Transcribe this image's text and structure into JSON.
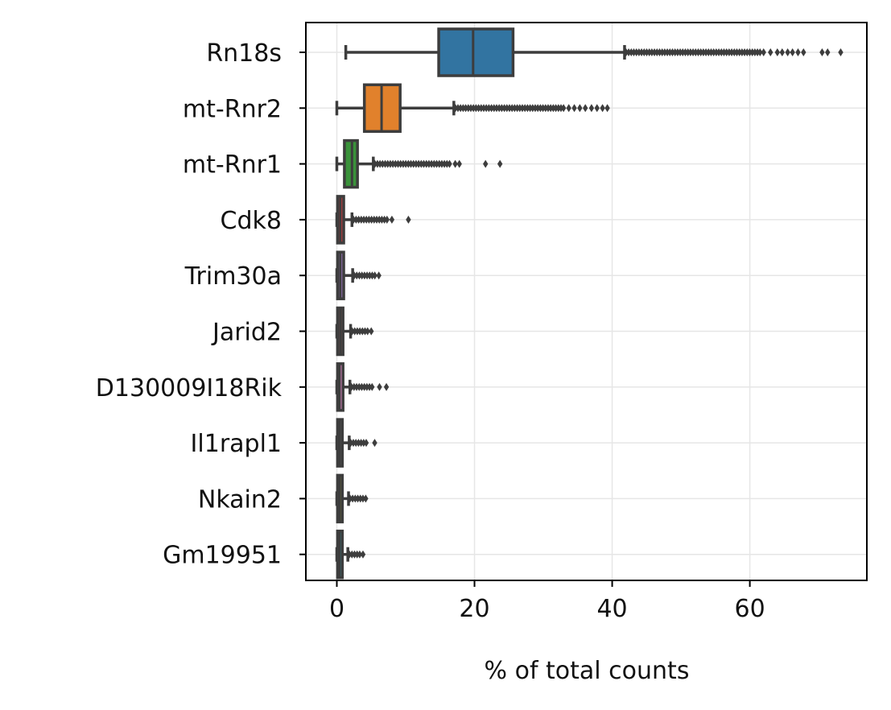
{
  "chart_data": {
    "type": "box",
    "orientation": "horizontal",
    "title": "",
    "xlabel": "% of total counts",
    "ylabel": "",
    "xlim": [
      -4.5,
      77
    ],
    "xticks": [
      0,
      20,
      40,
      60
    ],
    "grid": true,
    "categories": [
      "Rn18s",
      "mt-Rnr2",
      "mt-Rnr1",
      "Cdk8",
      "Trim30a",
      "Jarid2",
      "D130009I18Rik",
      "Il1rapl1",
      "Nkain2",
      "Gm19951"
    ],
    "boxes": [
      {
        "name": "Rn18s",
        "color": "#3274a1",
        "whisker_low": 1.3,
        "q1": 14.8,
        "median": 19.8,
        "q3": 25.6,
        "whisker_high": 41.8,
        "outliers_dense_to": 61.5,
        "outliers": [
          62.0,
          63.0,
          64.0,
          64.7,
          65.5,
          66.2,
          67.0,
          67.8,
          70.5,
          71.3,
          73.2
        ]
      },
      {
        "name": "mt-Rnr2",
        "color": "#e1812c",
        "whisker_low": 0.0,
        "q1": 4.0,
        "median": 6.5,
        "q3": 9.2,
        "whisker_high": 17.0,
        "outliers_dense_to": 33.0,
        "outliers": [
          33.7,
          34.5,
          35.3,
          36.1,
          37.0,
          37.8,
          38.6,
          39.3
        ]
      },
      {
        "name": "mt-Rnr1",
        "color": "#3a923a",
        "whisker_low": 0.0,
        "q1": 1.1,
        "median": 2.2,
        "q3": 3.0,
        "whisker_high": 5.3,
        "outliers_dense_to": 16.5,
        "outliers": [
          17.2,
          17.8,
          21.6,
          23.7
        ]
      },
      {
        "name": "Cdk8",
        "color": "#c03d3e",
        "whisker_low": 0.0,
        "q1": 0.1,
        "median": 0.5,
        "q3": 1.0,
        "whisker_high": 2.2,
        "outliers_dense_to": 7.5,
        "outliers": [
          8.0,
          10.4
        ]
      },
      {
        "name": "Trim30a",
        "color": "#9372b2",
        "whisker_low": 0.0,
        "q1": 0.1,
        "median": 0.5,
        "q3": 1.0,
        "whisker_high": 2.3,
        "outliers_dense_to": 5.8,
        "outliers": [
          6.1
        ]
      },
      {
        "name": "Jarid2",
        "color": "#845b53",
        "whisker_low": 0.0,
        "q1": 0.1,
        "median": 0.5,
        "q3": 0.9,
        "whisker_high": 2.0,
        "outliers_dense_to": 4.8,
        "outliers": [
          5.0
        ]
      },
      {
        "name": "D130009I18Rik",
        "color": "#d684bd",
        "whisker_low": 0.0,
        "q1": 0.1,
        "median": 0.4,
        "q3": 0.9,
        "whisker_high": 1.9,
        "outliers_dense_to": 5.3,
        "outliers": [
          6.2,
          7.2
        ]
      },
      {
        "name": "Il1rapl1",
        "color": "#7f7f7f",
        "whisker_low": 0.0,
        "q1": 0.1,
        "median": 0.4,
        "q3": 0.8,
        "whisker_high": 1.8,
        "outliers_dense_to": 4.6,
        "outliers": [
          5.5
        ]
      },
      {
        "name": "Nkain2",
        "color": "#a9aa35",
        "whisker_low": 0.0,
        "q1": 0.1,
        "median": 0.4,
        "q3": 0.8,
        "whisker_high": 1.7,
        "outliers_dense_to": 4.0,
        "outliers": [
          4.2
        ]
      },
      {
        "name": "Gm19951",
        "color": "#2ed0e2",
        "whisker_low": 0.0,
        "q1": 0.1,
        "median": 0.4,
        "q3": 0.8,
        "whisker_high": 1.6,
        "outliers_dense_to": 3.6,
        "outliers": [
          3.8
        ]
      }
    ]
  }
}
